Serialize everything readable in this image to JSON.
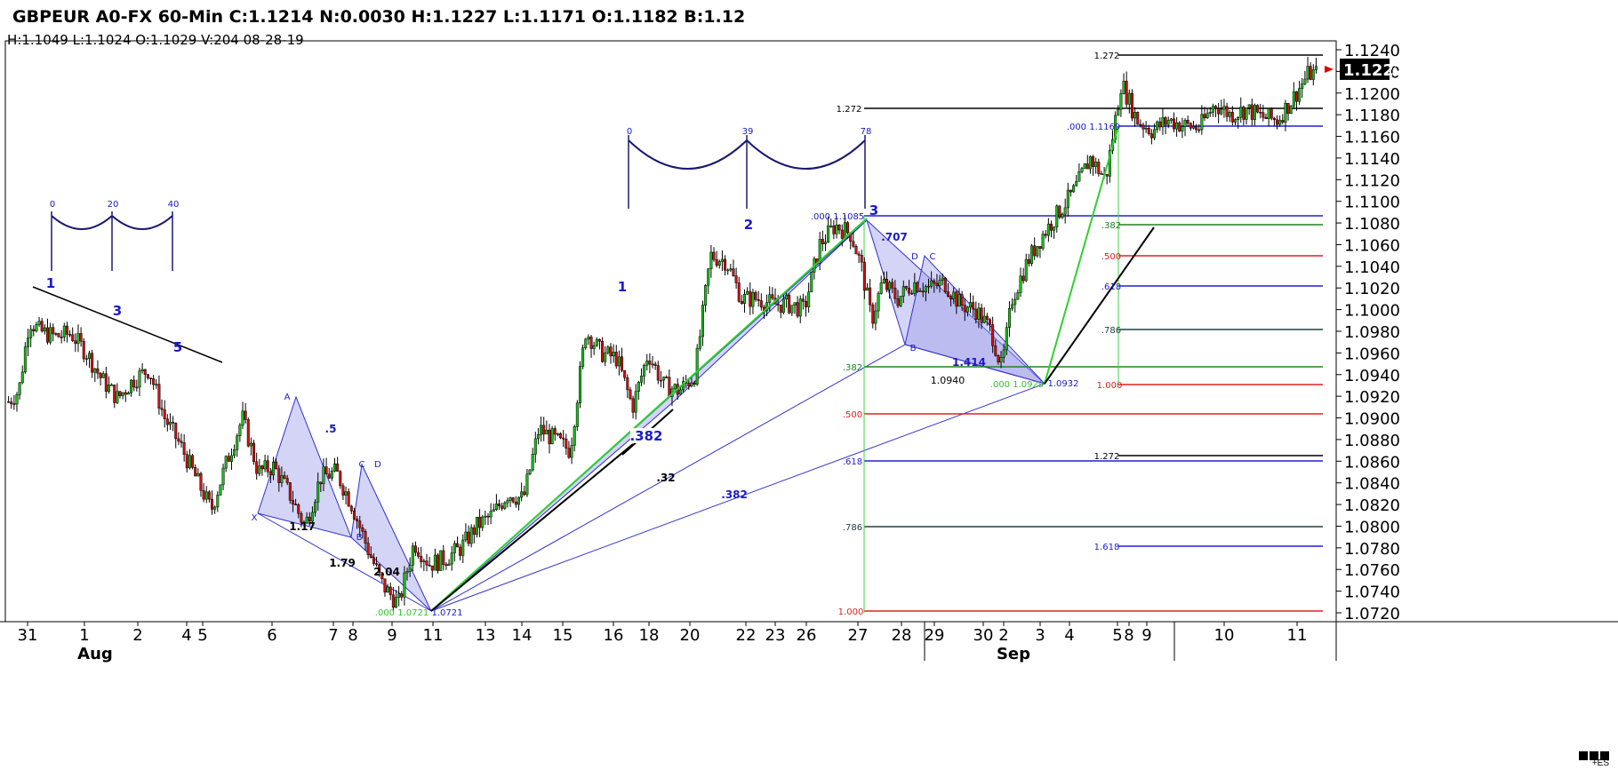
{
  "header": {
    "title": "GBPEUR A0-FX 60-Min C:1.1214 N:0.0030 H:1.1227 L:1.1171 O:1.1182 B:1.12",
    "subtitle": "H:1.1049  L:1.1024  O:1.1029  V:204  08-28-19"
  },
  "footer_note": "+ES",
  "chart_data": {
    "type": "candlestick",
    "symbol": "GBPEUR",
    "interval": "60-Min",
    "current_price": "1.1222",
    "ylim": [
      1.071,
      1.125
    ],
    "y_ticks": [
      "1.1240",
      "1.1220",
      "1.1200",
      "1.1180",
      "1.1160",
      "1.1140",
      "1.1120",
      "1.1100",
      "1.1080",
      "1.1060",
      "1.1040",
      "1.1020",
      "1.1000",
      "1.0980",
      "1.0960",
      "1.0940",
      "1.0920",
      "1.0900",
      "1.0880",
      "1.0860",
      "1.0840",
      "1.0820",
      "1.0800",
      "1.0780",
      "1.0760",
      "1.0740",
      "1.0720"
    ],
    "x_ticks": [
      "31",
      "1",
      "2",
      "4",
      "5",
      "6",
      "7",
      "8",
      "9",
      "11",
      "13",
      "14",
      "15",
      "16",
      "18",
      "20",
      "22",
      "23",
      "26",
      "27",
      "28",
      "29",
      "30",
      "2",
      "3",
      "4",
      "5",
      "8",
      "9",
      "10",
      "11"
    ],
    "month_labels": [
      "Aug",
      "Sep"
    ],
    "price_path": [
      {
        "t": 0,
        "p": 1.0915
      },
      {
        "t": 2,
        "p": 1.0925
      },
      {
        "t": 4,
        "p": 1.099
      },
      {
        "t": 6,
        "p": 1.098
      },
      {
        "t": 9,
        "p": 1.0975
      },
      {
        "t": 12,
        "p": 1.0978
      },
      {
        "t": 15,
        "p": 1.096
      },
      {
        "t": 18,
        "p": 1.0935
      },
      {
        "t": 21,
        "p": 1.0918
      },
      {
        "t": 24,
        "p": 1.0935
      },
      {
        "t": 27,
        "p": 1.0945
      },
      {
        "t": 30,
        "p": 1.09
      },
      {
        "t": 33,
        "p": 1.0875
      },
      {
        "t": 36,
        "p": 1.0845
      },
      {
        "t": 39,
        "p": 1.0815
      },
      {
        "t": 42,
        "p": 1.086
      },
      {
        "t": 45,
        "p": 1.09
      },
      {
        "t": 48,
        "p": 1.085
      },
      {
        "t": 51,
        "p": 1.0855
      },
      {
        "t": 54,
        "p": 1.083
      },
      {
        "t": 57,
        "p": 1.08
      },
      {
        "t": 60,
        "p": 1.0845
      },
      {
        "t": 63,
        "p": 1.085
      },
      {
        "t": 66,
        "p": 1.082
      },
      {
        "t": 69,
        "p": 1.078
      },
      {
        "t": 72,
        "p": 1.0745
      },
      {
        "t": 75,
        "p": 1.0728
      },
      {
        "t": 78,
        "p": 1.0785
      },
      {
        "t": 81,
        "p": 1.0765
      },
      {
        "t": 84,
        "p": 1.077
      },
      {
        "t": 87,
        "p": 1.078
      },
      {
        "t": 90,
        "p": 1.08
      },
      {
        "t": 93,
        "p": 1.081
      },
      {
        "t": 96,
        "p": 1.083
      },
      {
        "t": 99,
        "p": 1.0825
      },
      {
        "t": 102,
        "p": 1.089
      },
      {
        "t": 105,
        "p": 1.088
      },
      {
        "t": 108,
        "p": 1.087
      },
      {
        "t": 111,
        "p": 1.098
      },
      {
        "t": 114,
        "p": 1.096
      },
      {
        "t": 117,
        "p": 1.0955
      },
      {
        "t": 120,
        "p": 1.091
      },
      {
        "t": 123,
        "p": 1.096
      },
      {
        "t": 126,
        "p": 1.093
      },
      {
        "t": 129,
        "p": 1.0925
      },
      {
        "t": 132,
        "p": 1.094
      },
      {
        "t": 135,
        "p": 1.105
      },
      {
        "t": 138,
        "p": 1.1045
      },
      {
        "t": 141,
        "p": 1.101
      },
      {
        "t": 144,
        "p": 1.101
      },
      {
        "t": 147,
        "p": 1.1005
      },
      {
        "t": 150,
        "p": 1.1005
      },
      {
        "t": 153,
        "p": 1.1
      },
      {
        "t": 156,
        "p": 1.106
      },
      {
        "t": 159,
        "p": 1.1078
      },
      {
        "t": 162,
        "p": 1.107
      },
      {
        "t": 164,
        "p": 1.104
      },
      {
        "t": 166,
        "p": 1.099
      },
      {
        "t": 168,
        "p": 1.1025
      },
      {
        "t": 171,
        "p": 1.101
      },
      {
        "t": 174,
        "p": 1.1025
      },
      {
        "t": 177,
        "p": 1.102
      },
      {
        "t": 180,
        "p": 1.1025
      },
      {
        "t": 183,
        "p": 1.1005
      },
      {
        "t": 186,
        "p": 1.1
      },
      {
        "t": 189,
        "p": 1.098
      },
      {
        "t": 191,
        "p": 1.0945
      },
      {
        "t": 193,
        "p": 1.101
      },
      {
        "t": 196,
        "p": 1.1045
      },
      {
        "t": 199,
        "p": 1.107
      },
      {
        "t": 202,
        "p": 1.109
      },
      {
        "t": 205,
        "p": 1.111
      },
      {
        "t": 208,
        "p": 1.114
      },
      {
        "t": 211,
        "p": 1.112
      },
      {
        "t": 214,
        "p": 1.121
      },
      {
        "t": 217,
        "p": 1.1175
      },
      {
        "t": 220,
        "p": 1.1165
      },
      {
        "t": 223,
        "p": 1.1175
      },
      {
        "t": 226,
        "p": 1.117
      },
      {
        "t": 229,
        "p": 1.1168
      },
      {
        "t": 232,
        "p": 1.119
      },
      {
        "t": 235,
        "p": 1.118
      },
      {
        "t": 238,
        "p": 1.1185
      },
      {
        "t": 241,
        "p": 1.1178
      },
      {
        "t": 244,
        "p": 1.1175
      },
      {
        "t": 247,
        "p": 1.1195
      },
      {
        "t": 250,
        "p": 1.1218
      }
    ],
    "annotations": {
      "wave_labels": [
        "1",
        "3",
        "5",
        "1",
        "2",
        "3"
      ],
      "cycle_labels": [
        "0",
        "20",
        "40",
        "0",
        "39",
        "78"
      ],
      "pattern_points": [
        "X",
        "A",
        "B",
        "C",
        "D",
        "B",
        "C",
        "D"
      ],
      "ratios": [
        ".5",
        "1.17",
        "1.79",
        "2.04",
        ".382",
        ".32",
        ".382",
        ".707",
        "1.414",
        "1.0940"
      ],
      "price_labels": [
        ".000 1.0721",
        "1.0721",
        ".000 1.1085",
        ".000 1.1169",
        ".000 1.0929",
        "1.0932"
      ],
      "fib_left": [
        ".382",
        ".500",
        ".618",
        ".786",
        "1.000",
        "1.272"
      ],
      "fib_right_upper": [
        ".382",
        ".500",
        ".618",
        ".786",
        "1.000",
        "1.272"
      ],
      "fib_right_lower": [
        "1.272",
        "1.618"
      ]
    }
  }
}
